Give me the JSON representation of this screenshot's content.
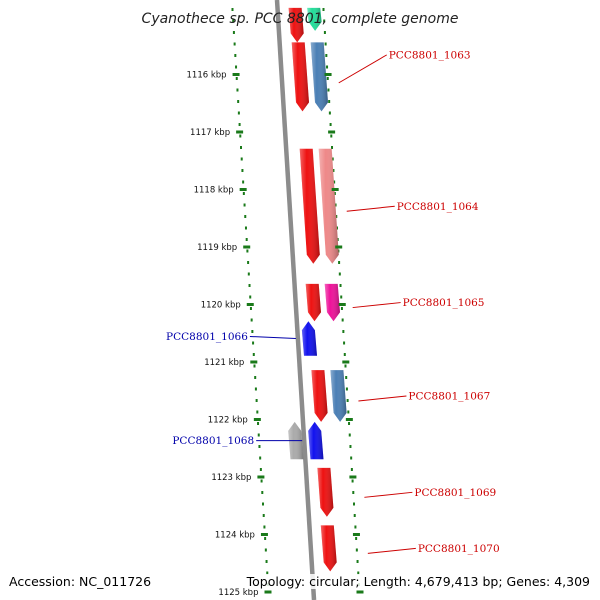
{
  "title": "Cyanothece sp. PCC 8801, complete genome",
  "footer": {
    "accession": "Accession: NC_011726",
    "topology": "Topology: circular; Length: 4,679,413 bp; Genes: 4,309"
  },
  "colors": {
    "backbone": "#8c8c8c",
    "tick_dots": "#1a7a1a",
    "label_forward": "#cc0000",
    "label_reverse": "#0000aa"
  },
  "ticks": [
    {
      "label": "1116 kbp",
      "kbp": 1116
    },
    {
      "label": "1117 kbp",
      "kbp": 1117
    },
    {
      "label": "1118 kbp",
      "kbp": 1118
    },
    {
      "label": "1119 kbp",
      "kbp": 1119
    },
    {
      "label": "1120 kbp",
      "kbp": 1120
    },
    {
      "label": "1121 kbp",
      "kbp": 1121
    },
    {
      "label": "1122 kbp",
      "kbp": 1122
    },
    {
      "label": "1123 kbp",
      "kbp": 1123
    },
    {
      "label": "1124 kbp",
      "kbp": 1124
    },
    {
      "label": "1125 kbp",
      "kbp": 1125
    }
  ],
  "genes": [
    {
      "label": "",
      "strand": "+",
      "start_kbp": 1114.85,
      "end_kbp": 1115.45,
      "color": "#ee1111",
      "track": 1
    },
    {
      "label": "",
      "strand": "+",
      "start_kbp": 1114.85,
      "end_kbp": 1115.25,
      "color": "#22dd99",
      "track": 2
    },
    {
      "label": "PCC8801_1063",
      "strand": "+",
      "start_kbp": 1115.45,
      "end_kbp": 1116.65,
      "color": "#ee1111",
      "track": 1
    },
    {
      "label": "",
      "strand": "+",
      "start_kbp": 1115.45,
      "end_kbp": 1116.65,
      "color": "#4a7fb5",
      "track": 2
    },
    {
      "label": "PCC8801_1064",
      "strand": "+",
      "start_kbp": 1117.3,
      "end_kbp": 1119.3,
      "color": "#ee1111",
      "track": 1
    },
    {
      "label": "",
      "strand": "+",
      "start_kbp": 1117.3,
      "end_kbp": 1119.3,
      "color": "#ee8888",
      "track": 2
    },
    {
      "label": "PCC8801_1065",
      "strand": "+",
      "start_kbp": 1119.65,
      "end_kbp": 1120.3,
      "color": "#ee1111",
      "track": 1
    },
    {
      "label": "",
      "strand": "+",
      "start_kbp": 1119.65,
      "end_kbp": 1120.3,
      "color": "#ee1199",
      "track": 2
    },
    {
      "label": "PCC8801_1066",
      "strand": "-",
      "start_kbp": 1120.3,
      "end_kbp": 1120.9,
      "color": "#1111ee",
      "track": -1
    },
    {
      "label": "PCC8801_1067",
      "strand": "+",
      "start_kbp": 1121.15,
      "end_kbp": 1122.05,
      "color": "#ee1111",
      "track": 1
    },
    {
      "label": "",
      "strand": "+",
      "start_kbp": 1121.15,
      "end_kbp": 1122.05,
      "color": "#4a7fb5",
      "track": 2
    },
    {
      "label": "",
      "strand": "-",
      "start_kbp": 1122.05,
      "end_kbp": 1122.7,
      "color": "#aaaaaa",
      "track": -2
    },
    {
      "label": "PCC8801_1068",
      "strand": "-",
      "start_kbp": 1122.05,
      "end_kbp": 1122.7,
      "color": "#1111ee",
      "track": -1
    },
    {
      "label": "PCC8801_1069",
      "strand": "+",
      "start_kbp": 1122.85,
      "end_kbp": 1123.7,
      "color": "#ee1111",
      "track": 1
    },
    {
      "label": "PCC8801_1070",
      "strand": "+",
      "start_kbp": 1123.85,
      "end_kbp": 1124.65,
      "color": "#ee1111",
      "track": 1
    }
  ]
}
